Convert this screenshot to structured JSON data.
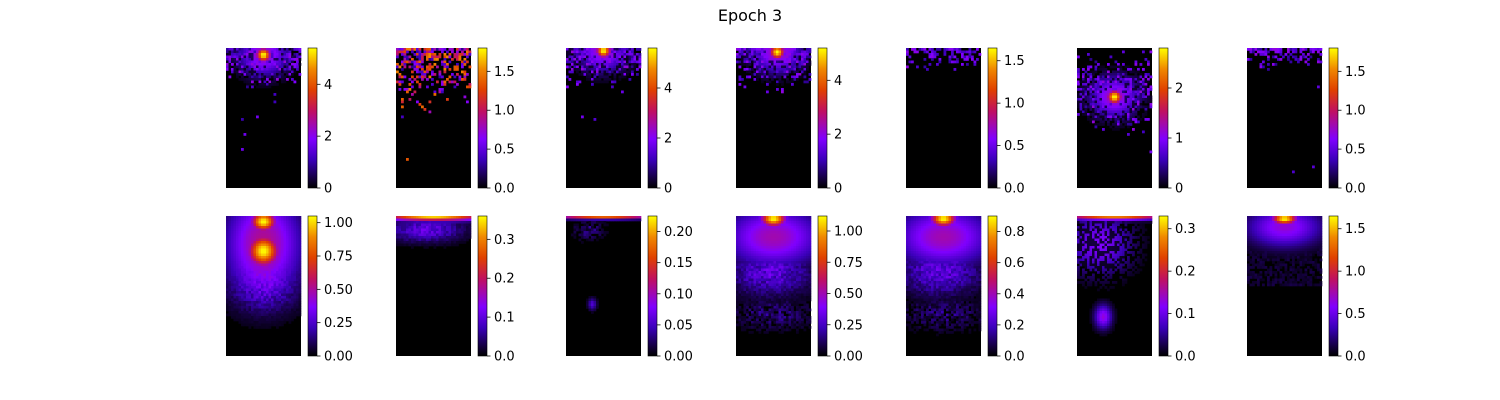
{
  "title": "Epoch 3",
  "colormap": {
    "name": "gnuplot",
    "stops": [
      {
        "t": 0.0,
        "color": "#000000"
      },
      {
        "t": 0.2,
        "color": "#3a00b8"
      },
      {
        "t": 0.35,
        "color": "#8000ff"
      },
      {
        "t": 0.55,
        "color": "#c01060"
      },
      {
        "t": 0.7,
        "color": "#e04000"
      },
      {
        "t": 0.85,
        "color": "#f08800"
      },
      {
        "t": 1.0,
        "color": "#ffff00"
      }
    ]
  },
  "chart_data": [
    {
      "type": "heatmap",
      "row": 1,
      "col": 1,
      "vmin": 0,
      "vmax": 5.4,
      "ticks": [
        0,
        2,
        4
      ],
      "tick_labels": [
        "0",
        "2",
        "4"
      ],
      "pattern": "sparse_top_hotspot",
      "hotspot": {
        "x": 0.5,
        "y": 0.05
      }
    },
    {
      "type": "heatmap",
      "row": 1,
      "col": 2,
      "vmin": 0,
      "vmax": 1.8,
      "ticks": [
        0.0,
        0.5,
        1.0,
        1.5
      ],
      "tick_labels": [
        "0.0",
        "0.5",
        "1.0",
        "1.5"
      ],
      "pattern": "sparse_dense_top"
    },
    {
      "type": "heatmap",
      "row": 1,
      "col": 3,
      "vmin": 0,
      "vmax": 5.6,
      "ticks": [
        0,
        2,
        4
      ],
      "tick_labels": [
        "0",
        "2",
        "4"
      ],
      "pattern": "sparse_top_hotspot",
      "hotspot": {
        "x": 0.5,
        "y": 0.02
      }
    },
    {
      "type": "heatmap",
      "row": 1,
      "col": 4,
      "vmin": 0,
      "vmax": 5.2,
      "ticks": [
        0,
        2,
        4
      ],
      "tick_labels": [
        "0",
        "2",
        "4"
      ],
      "pattern": "sparse_top_hotspot",
      "hotspot": {
        "x": 0.55,
        "y": 0.03
      }
    },
    {
      "type": "heatmap",
      "row": 1,
      "col": 5,
      "vmin": 0,
      "vmax": 1.65,
      "ticks": [
        0.0,
        0.5,
        1.0,
        1.5
      ],
      "tick_labels": [
        "0.0",
        "0.5",
        "1.0",
        "1.5"
      ],
      "pattern": "sparse_top_thin"
    },
    {
      "type": "heatmap",
      "row": 1,
      "col": 6,
      "vmin": 0,
      "vmax": 2.8,
      "ticks": [
        0,
        1,
        2
      ],
      "tick_labels": [
        "0",
        "1",
        "2"
      ],
      "pattern": "sparse_mid_hotspot",
      "hotspot": {
        "x": 0.5,
        "y": 0.35
      }
    },
    {
      "type": "heatmap",
      "row": 1,
      "col": 7,
      "vmin": 0,
      "vmax": 1.8,
      "ticks": [
        0.0,
        0.5,
        1.0,
        1.5
      ],
      "tick_labels": [
        "0.0",
        "0.5",
        "1.0",
        "1.5"
      ],
      "pattern": "sparse_top_thin"
    },
    {
      "type": "heatmap",
      "row": 2,
      "col": 1,
      "vmin": 0,
      "vmax": 1.05,
      "ticks": [
        0.0,
        0.25,
        0.5,
        0.75,
        1.0
      ],
      "tick_labels": [
        "0.00",
        "0.25",
        "0.50",
        "0.75",
        "1.00"
      ],
      "pattern": "smooth_column_blob"
    },
    {
      "type": "heatmap",
      "row": 2,
      "col": 2,
      "vmin": 0,
      "vmax": 0.36,
      "ticks": [
        0.0,
        0.1,
        0.2,
        0.3
      ],
      "tick_labels": [
        "0.0",
        "0.1",
        "0.2",
        "0.3"
      ],
      "pattern": "smooth_top_band"
    },
    {
      "type": "heatmap",
      "row": 2,
      "col": 3,
      "vmin": 0,
      "vmax": 0.225,
      "ticks": [
        0.0,
        0.05,
        0.1,
        0.15,
        0.2
      ],
      "tick_labels": [
        "0.00",
        "0.05",
        "0.10",
        "0.15",
        "0.20"
      ],
      "pattern": "smooth_top_band_faint"
    },
    {
      "type": "heatmap",
      "row": 2,
      "col": 4,
      "vmin": 0,
      "vmax": 1.12,
      "ticks": [
        0.0,
        0.25,
        0.5,
        0.75,
        1.0
      ],
      "tick_labels": [
        "0.00",
        "0.25",
        "0.50",
        "0.75",
        "1.00"
      ],
      "pattern": "smooth_top_spread"
    },
    {
      "type": "heatmap",
      "row": 2,
      "col": 5,
      "vmin": 0,
      "vmax": 0.9,
      "ticks": [
        0.0,
        0.2,
        0.4,
        0.6,
        0.8
      ],
      "tick_labels": [
        "0.0",
        "0.2",
        "0.4",
        "0.6",
        "0.8"
      ],
      "pattern": "smooth_top_spread"
    },
    {
      "type": "heatmap",
      "row": 2,
      "col": 6,
      "vmin": 0,
      "vmax": 0.33,
      "ticks": [
        0.0,
        0.1,
        0.2,
        0.3
      ],
      "tick_labels": [
        "0.0",
        "0.1",
        "0.2",
        "0.3"
      ],
      "pattern": "smooth_top_band_patchy"
    },
    {
      "type": "heatmap",
      "row": 2,
      "col": 7,
      "vmin": 0,
      "vmax": 1.65,
      "ticks": [
        0.5,
        1.0,
        1.5
      ],
      "tick_labels": [
        "0.5",
        "1.0",
        "1.5"
      ],
      "extra_tick": {
        "value": 0,
        "label": "0.0"
      },
      "pattern": "smooth_top_blob_small"
    }
  ]
}
